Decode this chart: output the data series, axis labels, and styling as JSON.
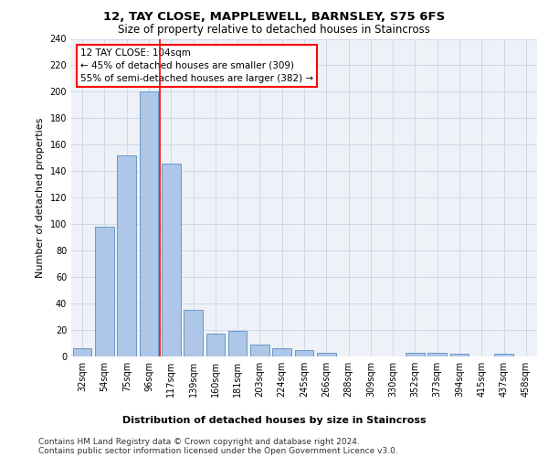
{
  "title": "12, TAY CLOSE, MAPPLEWELL, BARNSLEY, S75 6FS",
  "subtitle": "Size of property relative to detached houses in Staincross",
  "xlabel_bottom": "Distribution of detached houses by size in Staincross",
  "ylabel": "Number of detached properties",
  "categories": [
    "32sqm",
    "54sqm",
    "75sqm",
    "96sqm",
    "117sqm",
    "139sqm",
    "160sqm",
    "181sqm",
    "203sqm",
    "224sqm",
    "245sqm",
    "266sqm",
    "288sqm",
    "309sqm",
    "330sqm",
    "352sqm",
    "373sqm",
    "394sqm",
    "415sqm",
    "437sqm",
    "458sqm"
  ],
  "values": [
    6,
    98,
    152,
    200,
    146,
    35,
    17,
    19,
    9,
    6,
    5,
    3,
    0,
    0,
    0,
    3,
    3,
    2,
    0,
    2,
    0
  ],
  "bar_color": "#aec6e8",
  "bar_edge_color": "#5a8fc2",
  "redline_x": 3.5,
  "annotation_text_line1": "12 TAY CLOSE: 104sqm",
  "annotation_text_line2": "← 45% of detached houses are smaller (309)",
  "annotation_text_line3": "55% of semi-detached houses are larger (382) →",
  "annotation_box_color": "#ffffff",
  "annotation_box_edge_color": "#ff0000",
  "ylim": [
    0,
    240
  ],
  "yticks": [
    0,
    20,
    40,
    60,
    80,
    100,
    120,
    140,
    160,
    180,
    200,
    220,
    240
  ],
  "grid_color": "#d0d8e8",
  "bg_color": "#eef2f8",
  "footer_line1": "Contains HM Land Registry data © Crown copyright and database right 2024.",
  "footer_line2": "Contains public sector information licensed under the Open Government Licence v3.0.",
  "title_fontsize": 9.5,
  "subtitle_fontsize": 8.5,
  "ylabel_fontsize": 8,
  "xlabel_bottom_fontsize": 8,
  "tick_fontsize": 7,
  "annotation_fontsize": 7.5,
  "footer_fontsize": 6.5
}
